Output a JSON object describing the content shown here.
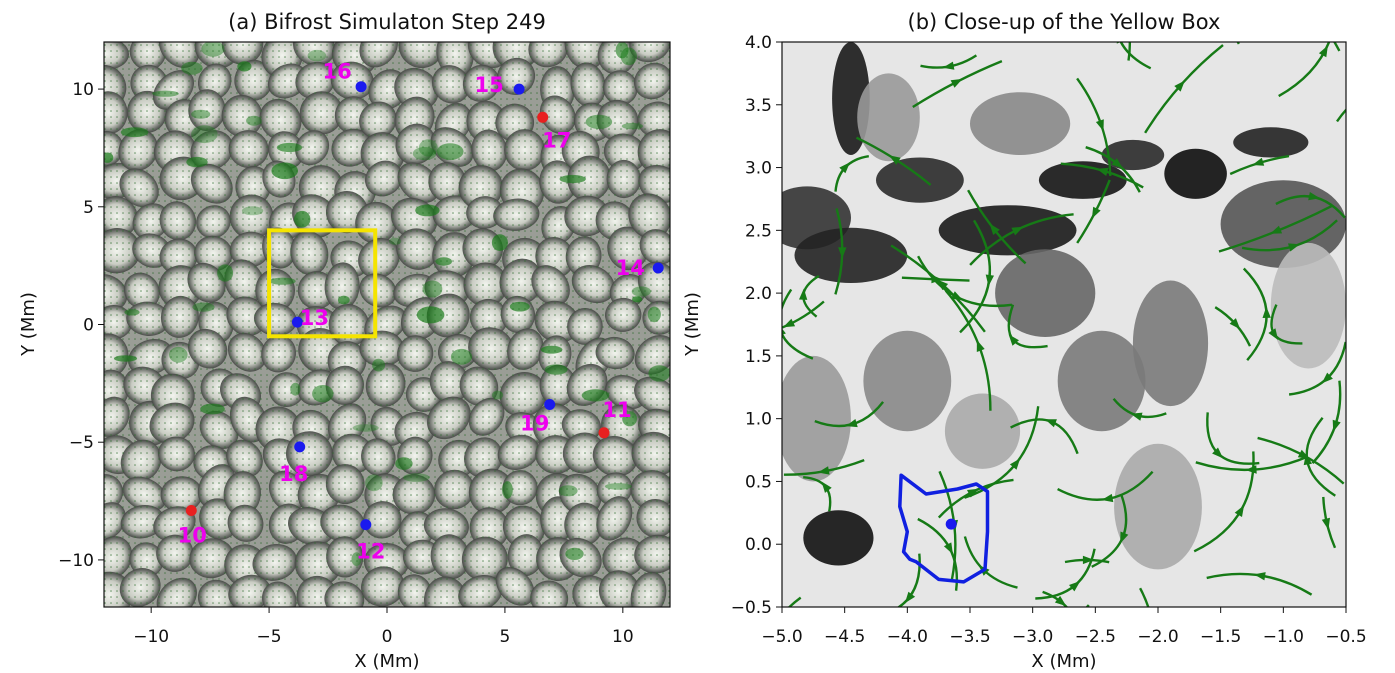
{
  "colors": {
    "stream": "#167a16",
    "box": "#f5e400",
    "label": "#ee00ee",
    "blue_point": "#1a1aee",
    "red_point": "#e82020",
    "contour": "#1020e0"
  },
  "chart_data": [
    {
      "type": "scatter",
      "title": "(a) Bifrost Simulaton Step 249",
      "xlabel": "X (Mm)",
      "ylabel": "Y (Mm)",
      "xlim": [
        -12,
        12
      ],
      "ylim": [
        -12,
        12
      ],
      "xticks": [
        -10,
        -5,
        0,
        5,
        10
      ],
      "yticks": [
        -10,
        -5,
        0,
        5,
        10
      ],
      "xtick_labels": [
        "−10",
        "−5",
        "0",
        "5",
        "10"
      ],
      "ytick_labels": [
        "−10",
        "−5",
        "0",
        "5",
        "10"
      ],
      "background": "grayscale granulation image with green velocity arrows",
      "points": [
        {
          "label": "16",
          "x": -1.1,
          "y": 10.1,
          "color": "blue"
        },
        {
          "label": "15",
          "x": 5.6,
          "y": 10.0,
          "color": "blue"
        },
        {
          "label": "17",
          "x": 6.6,
          "y": 8.8,
          "color": "red"
        },
        {
          "label": "14",
          "x": 11.5,
          "y": 2.4,
          "color": "blue"
        },
        {
          "label": "13",
          "x": -3.8,
          "y": 0.1,
          "color": "blue"
        },
        {
          "label": "19",
          "x": 6.9,
          "y": -3.4,
          "color": "blue"
        },
        {
          "label": "11",
          "x": 9.2,
          "y": -4.6,
          "color": "red"
        },
        {
          "label": "18",
          "x": -3.7,
          "y": -5.2,
          "color": "blue"
        },
        {
          "label": "10",
          "x": -8.3,
          "y": -7.9,
          "color": "red"
        },
        {
          "label": "12",
          "x": -0.9,
          "y": -8.5,
          "color": "blue"
        }
      ],
      "box": {
        "x0": -5.0,
        "x1": -0.5,
        "y0": -0.5,
        "y1": 4.0
      }
    },
    {
      "type": "streamplot",
      "title": "(b) Close-up of the Yellow Box",
      "xlabel": "X (Mm)",
      "ylabel": "Y (Mm)",
      "xlim": [
        -5.0,
        -0.5
      ],
      "ylim": [
        -0.5,
        4.0
      ],
      "xticks": [
        -5.0,
        -4.5,
        -4.0,
        -3.5,
        -3.0,
        -2.5,
        -2.0,
        -1.5,
        -1.0,
        -0.5
      ],
      "yticks": [
        -0.5,
        0.0,
        0.5,
        1.0,
        1.5,
        2.0,
        2.5,
        3.0,
        3.5,
        4.0
      ],
      "xtick_labels": [
        "−5.0",
        "−4.5",
        "−4.0",
        "−3.5",
        "−3.0",
        "−2.5",
        "−2.0",
        "−1.5",
        "−1.0",
        "−0.5"
      ],
      "ytick_labels": [
        "−0.5",
        "0.0",
        "0.5",
        "1.0",
        "1.5",
        "2.0",
        "2.5",
        "3.0",
        "3.5",
        "4.0"
      ],
      "point": {
        "x": -3.65,
        "y": 0.16,
        "color": "blue"
      },
      "contour": [
        [
          -4.05,
          0.55
        ],
        [
          -3.85,
          0.4
        ],
        [
          -3.6,
          0.44
        ],
        [
          -3.45,
          0.48
        ],
        [
          -3.36,
          0.42
        ],
        [
          -3.36,
          0.1
        ],
        [
          -3.38,
          -0.2
        ],
        [
          -3.55,
          -0.3
        ],
        [
          -3.75,
          -0.28
        ],
        [
          -3.93,
          -0.14
        ],
        [
          -3.98,
          -0.12
        ],
        [
          -4.03,
          -0.06
        ],
        [
          -4.0,
          0.1
        ],
        [
          -4.06,
          0.3
        ],
        [
          -4.05,
          0.55
        ]
      ]
    }
  ]
}
